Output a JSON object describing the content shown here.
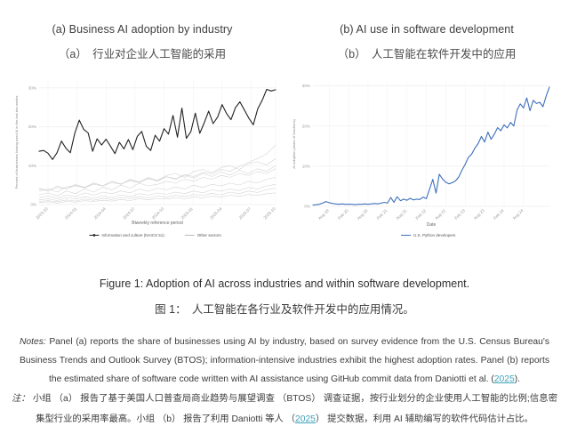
{
  "panels": [
    {
      "title_en": "(a) Business AI adoption by industry",
      "title_zh": "（a）　行业对企业人工智能的采用"
    },
    {
      "title_en": "(b) AI use in software development",
      "title_zh": "（b）　人工智能在软件开发中的应用"
    }
  ],
  "caption": {
    "en": "Figure 1: Adoption of AI across industries and within software development.",
    "zh": "图 1：　人工智能在各行业及软件开发中的应用情况。"
  },
  "notes_en": {
    "label": "Notes:",
    "body": " Panel (a) reports the share of businesses using AI by industry, based on survey evidence from the U.S. Census Bureau's Business Trends and Outlook Survey (BTOS); information-intensive industries exhibit the highest adoption rates. Panel (b) reports the estimated share of software code written with AI assistance using GitHub commit data from Daniotti et al. (",
    "link": "2025",
    "after": ")."
  },
  "notes_zh": {
    "label": "注：",
    "body": " 小组 （a） 报告了基于美国人口普查局商业趋势与展望调查 （BTOS） 调查证据，按行业划分的企业使用人工智能的比例;信息密集型行业的采用率最高。小组 （b） 报告了利用 Daniotti 等人 （",
    "link": "2025",
    "after": "） 提交数据，利用 AI 辅助编写的软件代码估计占比。"
  },
  "colors": {
    "info_line": "#222222",
    "other_lines": "#cccccc",
    "python_line": "#3e6fbd",
    "link": "#3fa3ba",
    "grid": "#ececec",
    "tick_text": "#9a9a9a"
  },
  "chart_data": [
    {
      "type": "line",
      "panel": "a",
      "ylabel": "Percent of businesses having used AI in the last two weeks",
      "xlabel": "Biweekly reference period",
      "ylim": [
        0,
        32
      ],
      "yticks": [
        0,
        10,
        20,
        30
      ],
      "xticks": [
        "2023-10",
        "2024-01",
        "2024-04",
        "2024-07",
        "2024-10",
        "2025-01",
        "2025-04",
        "2025-07",
        "2025-10"
      ],
      "xtick_indices": [
        2,
        8.5,
        15,
        21.5,
        28,
        34.5,
        41,
        47.5,
        53
      ],
      "grid": true,
      "legend_position": "bottom",
      "legend": [
        {
          "label": "Information and culture (NAICS 51)",
          "color": "#222222",
          "dot": true
        },
        {
          "label": "Other sectors",
          "color": "#bbbbbb",
          "dot": false
        }
      ],
      "series": [
        {
          "name": "Information and culture (NAICS 51)",
          "color": "#222222",
          "values": [
            13.7,
            13.9,
            13.2,
            11.6,
            13.3,
            16.3,
            14.5,
            13.3,
            18.4,
            21.7,
            19.3,
            18.4,
            13.7,
            16.9,
            15.3,
            16.8,
            15.0,
            13.1,
            16.0,
            14.3,
            16.7,
            14.1,
            17.5,
            18.8,
            15.0,
            13.9,
            17.8,
            16.3,
            19.5,
            18.1,
            22.9,
            17.3,
            24.8,
            17.0,
            18.7,
            23.5,
            18.3,
            21.0,
            24.0,
            20.8,
            22.5,
            25.7,
            23.4,
            21.8,
            24.9,
            26.4,
            24.3,
            22.2,
            20.5,
            24.6,
            26.8,
            29.6,
            29.2,
            29.5
          ]
        },
        {
          "name": "Other sectors",
          "color": "#cccccc",
          "lines": [
            [
              3.5,
              4.0,
              3.2,
              4.5,
              5.0,
              4.2,
              5.5,
              4.8,
              6.0,
              5.2,
              6.5,
              5.8,
              7.0,
              6.2,
              7.5,
              8.0,
              7.0,
              8.5,
              9.0,
              8.2,
              9.5,
              10.0,
              9.0,
              10.5,
              11.0,
              10.2,
              11.8
            ],
            [
              2.5,
              3.0,
              2.2,
              3.5,
              2.8,
              4.0,
              3.2,
              4.5,
              3.8,
              5.0,
              4.2,
              5.5,
              4.8,
              5.2,
              6.0,
              5.5,
              6.5,
              6.0,
              7.0,
              6.5,
              7.5,
              7.0,
              8.0,
              7.5,
              8.5,
              8.0,
              9.2
            ],
            [
              1.8,
              2.2,
              1.5,
              2.5,
              2.0,
              3.0,
              2.4,
              3.2,
              2.8,
              3.5,
              3.0,
              4.0,
              3.4,
              4.2,
              3.8,
              4.5,
              4.0,
              5.0,
              4.4,
              5.2,
              4.8,
              5.5,
              5.0,
              6.0,
              5.5,
              6.5,
              7.0
            ],
            [
              1.2,
              1.5,
              1.0,
              1.8,
              1.4,
              2.0,
              1.6,
              2.2,
              1.8,
              2.5,
              2.0,
              2.8,
              2.4,
              3.0,
              2.6,
              3.2,
              2.8,
              3.5,
              3.0,
              3.8,
              3.4,
              4.0,
              3.6,
              4.4,
              4.0,
              4.8,
              5.2
            ],
            [
              0.8,
              1.0,
              0.7,
              1.2,
              0.9,
              1.4,
              1.1,
              1.6,
              1.3,
              1.8,
              1.5,
              2.0,
              1.7,
              2.2,
              1.9,
              2.4,
              2.1,
              2.6,
              2.3,
              2.9,
              2.5,
              3.2,
              2.8,
              3.5,
              3.1,
              3.8,
              4.2
            ],
            [
              0.5,
              0.7,
              0.4,
              0.8,
              0.6,
              1.0,
              0.8,
              1.1,
              0.9,
              1.3,
              1.0,
              1.5,
              1.2,
              1.6,
              1.4,
              1.8,
              1.5,
              2.0,
              1.7,
              2.2,
              1.9,
              2.4,
              2.1,
              2.6,
              2.3,
              2.8,
              3.0
            ],
            [
              4.2,
              3.5,
              4.8,
              4.0,
              5.2,
              4.4,
              5.6,
              4.8,
              6.0,
              5.2,
              6.4,
              5.6,
              6.8,
              6.0,
              7.2,
              6.4,
              7.6,
              6.8,
              8.0,
              7.2,
              8.4,
              7.6,
              8.8,
              8.0,
              9.2,
              8.6,
              10.0
            ],
            [
              4.0,
              3.6,
              4.4,
              4.1,
              4.8,
              4.4,
              5.2,
              4.8,
              5.6,
              5.3,
              6.1,
              5.7,
              6.6,
              6.2,
              7.1,
              6.7,
              7.7,
              7.2,
              8.3,
              7.9,
              9.0,
              8.5,
              9.8,
              10.8,
              11.8,
              13.0,
              15.3
            ]
          ]
        }
      ]
    },
    {
      "type": "line",
      "panel": "b",
      "ylabel": "AI adoption (share of functions)",
      "xlabel": "Date",
      "ylim": [
        0,
        31
      ],
      "yticks": [
        0,
        10,
        20,
        30
      ],
      "xticks": [
        "Aug 19",
        "Feb 20",
        "Aug 20",
        "Feb 21",
        "Aug 21",
        "Feb 22",
        "Aug 22",
        "Feb 23",
        "Aug 23",
        "Feb 24",
        "Aug 24"
      ],
      "xtick_indices": [
        5,
        11,
        17,
        23,
        29,
        35,
        41,
        47,
        53,
        59,
        65
      ],
      "grid": true,
      "legend_position": "bottom",
      "legend": [
        {
          "label": "U.S. Python developers",
          "color": "#3e6fbd",
          "dot": false
        }
      ],
      "series": [
        {
          "name": "U.S. Python developers",
          "color": "#3e6fbd",
          "values": [
            0.3,
            0.4,
            0.5,
            0.8,
            1.2,
            0.9,
            0.7,
            0.6,
            0.5,
            0.6,
            0.5,
            0.5,
            0.5,
            0.4,
            0.5,
            0.5,
            0.6,
            0.5,
            0.6,
            0.7,
            0.6,
            0.8,
            1.0,
            0.8,
            2.2,
            1.0,
            2.4,
            1.4,
            1.8,
            1.5,
            2.0,
            1.6,
            1.8,
            1.7,
            2.3,
            1.9,
            4.3,
            6.7,
            3.3,
            8.0,
            6.8,
            6.0,
            5.6,
            5.9,
            6.3,
            7.3,
            9.0,
            10.5,
            12.2,
            13.0,
            14.5,
            15.6,
            17.4,
            16.0,
            18.5,
            16.7,
            18.0,
            19.6,
            18.8,
            20.3,
            19.5,
            20.9,
            20.0,
            24.0,
            25.5,
            24.5,
            27.0,
            23.8,
            26.4,
            25.6,
            25.9,
            24.8,
            27.5,
            29.7
          ]
        }
      ]
    }
  ]
}
